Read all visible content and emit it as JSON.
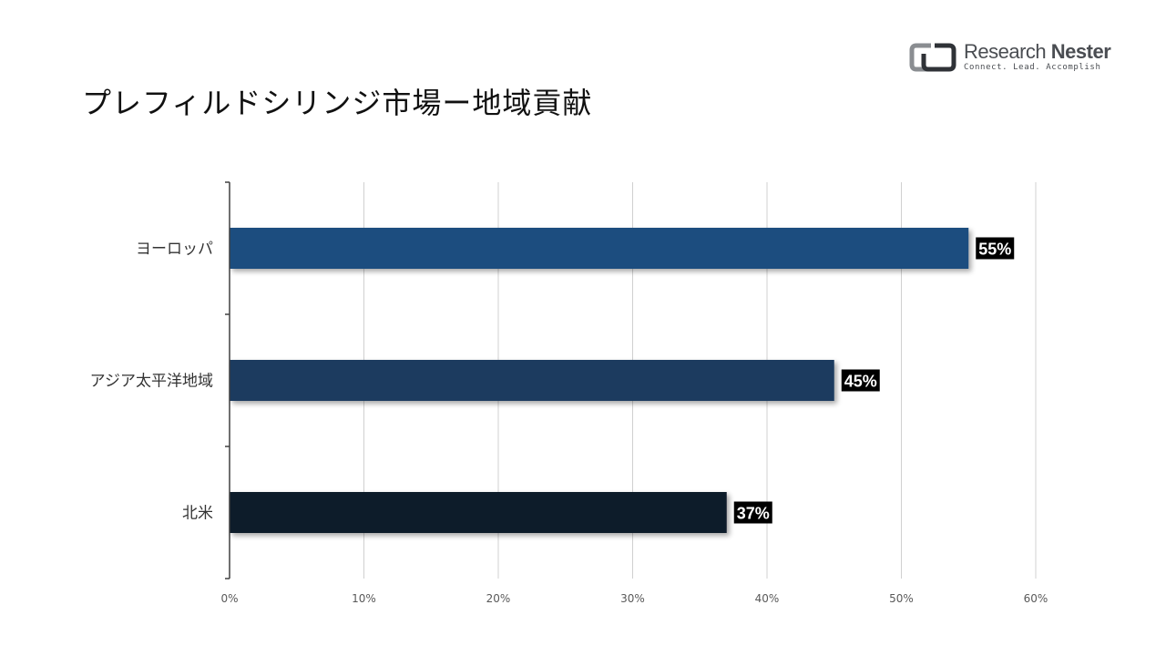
{
  "title": "プレフィルドシリンジ市場ー地域貢献",
  "logo": {
    "name_part1": "Research",
    "name_part2": "Nester",
    "tagline": "Connect. Lead. Accomplish"
  },
  "colors": {
    "europe": "#1f4e7f",
    "apac": "#1a3a5f",
    "north_america": "#0e1c2c",
    "label_bg": "#000000",
    "grid": "#d0d0d0"
  },
  "chart_data": {
    "type": "bar",
    "orientation": "horizontal",
    "categories": [
      "ヨーロッパ",
      "アジア太平洋地域",
      "北米"
    ],
    "values": [
      55,
      45,
      37
    ],
    "data_labels": [
      "55%",
      "45%",
      "37%"
    ],
    "xlim": [
      0,
      60
    ],
    "x_ticks": [
      "0%",
      "10%",
      "20%",
      "30%",
      "40%",
      "50%",
      "60%"
    ],
    "grid": true,
    "legend": "none"
  }
}
